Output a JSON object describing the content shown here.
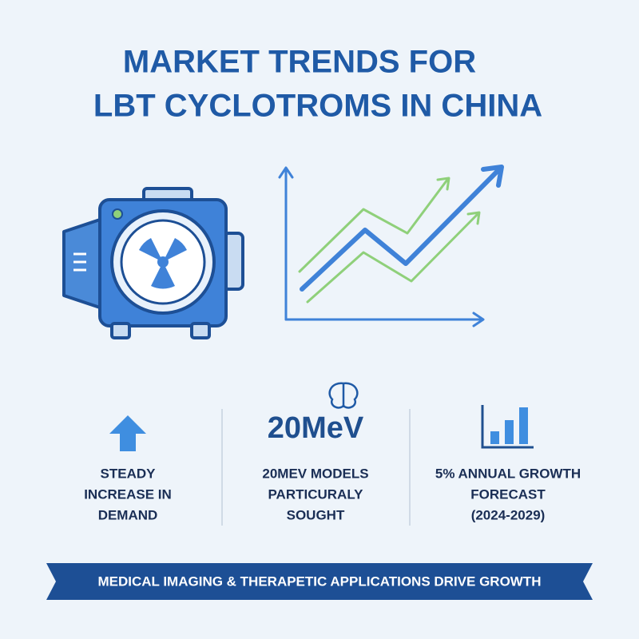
{
  "header": {
    "title_lines": [
      "MARKET TRENDS FOR",
      "LBT CYCLOTROMS IN CHINA"
    ]
  },
  "stats": [
    {
      "lines": [
        "STEADY",
        "INCREASE IN",
        "DEMAND"
      ]
    },
    {
      "highlight": "20MeV",
      "lines": [
        "20MEV MODELS",
        "PARTICURALY",
        "SOUGHT"
      ]
    },
    {
      "lines": [
        "5% ANNUAL GROWTH",
        "FORECAST",
        "(2024-2029)"
      ]
    }
  ],
  "banner": {
    "text": "MEDICAL IMAGING & THERAPETIC APPLICATIONS DRIVE GROWTH"
  }
}
